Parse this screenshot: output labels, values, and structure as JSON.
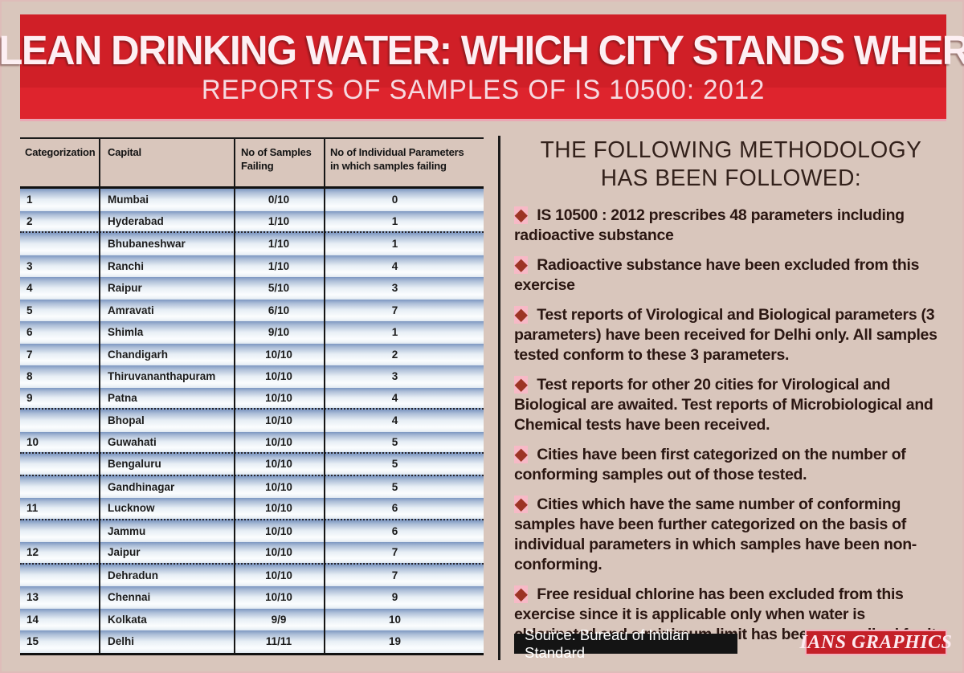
{
  "header": {
    "title": "CLEAN DRINKING WATER: WHICH CITY STANDS WHERE",
    "subtitle": "REPORTS OF SAMPLES OF IS 10500: 2012"
  },
  "table": {
    "col_headers": {
      "categorization": "Categorization",
      "capital": "Capital",
      "samples_line1": "No of Samples",
      "samples_line2": "Failing",
      "params_line1": "No of Individual Parameters",
      "params_line2": "in which samples failing"
    },
    "rows": [
      {
        "cat": "1",
        "capital": "Mumbai",
        "samples": "0/10",
        "params": "0",
        "dotted_below": false
      },
      {
        "cat": "2",
        "capital": "Hyderabad",
        "samples": "1/10",
        "params": "1",
        "dotted_below": true
      },
      {
        "cat": "",
        "capital": "Bhubaneshwar",
        "samples": "1/10",
        "params": "1",
        "dotted_below": false
      },
      {
        "cat": "3",
        "capital": "Ranchi",
        "samples": "1/10",
        "params": "4",
        "dotted_below": false
      },
      {
        "cat": "4",
        "capital": "Raipur",
        "samples": "5/10",
        "params": "3",
        "dotted_below": false
      },
      {
        "cat": "5",
        "capital": "Amravati",
        "samples": "6/10",
        "params": "7",
        "dotted_below": false
      },
      {
        "cat": "6",
        "capital": "Shimla",
        "samples": "9/10",
        "params": "1",
        "dotted_below": false
      },
      {
        "cat": "7",
        "capital": "Chandigarh",
        "samples": "10/10",
        "params": "2",
        "dotted_below": false
      },
      {
        "cat": "8",
        "capital": "Thiruvananthapuram",
        "samples": "10/10",
        "params": "3",
        "dotted_below": false
      },
      {
        "cat": "9",
        "capital": "Patna",
        "samples": "10/10",
        "params": "4",
        "dotted_below": true
      },
      {
        "cat": "",
        "capital": "Bhopal",
        "samples": "10/10",
        "params": "4",
        "dotted_below": false
      },
      {
        "cat": "10",
        "capital": "Guwahati",
        "samples": "10/10",
        "params": "5",
        "dotted_below": true
      },
      {
        "cat": "",
        "capital": "Bengaluru",
        "samples": "10/10",
        "params": "5",
        "dotted_below": true
      },
      {
        "cat": "",
        "capital": "Gandhinagar",
        "samples": "10/10",
        "params": "5",
        "dotted_below": false
      },
      {
        "cat": "11",
        "capital": "Lucknow",
        "samples": "10/10",
        "params": "6",
        "dotted_below": true
      },
      {
        "cat": "",
        "capital": "Jammu",
        "samples": "10/10",
        "params": "6",
        "dotted_below": false
      },
      {
        "cat": "12",
        "capital": "Jaipur",
        "samples": "10/10",
        "params": "7",
        "dotted_below": true
      },
      {
        "cat": "",
        "capital": "Dehradun",
        "samples": "10/10",
        "params": "7",
        "dotted_below": false
      },
      {
        "cat": "13",
        "capital": "Chennai",
        "samples": "10/10",
        "params": "9",
        "dotted_below": false
      },
      {
        "cat": "14",
        "capital": "Kolkata",
        "samples": "9/9",
        "params": "10",
        "dotted_below": false
      },
      {
        "cat": "15",
        "capital": "Delhi",
        "samples": "11/11",
        "params": "19",
        "dotted_below": false
      }
    ]
  },
  "methodology": {
    "heading_line1": "THE FOLLOWING METHODOLOGY",
    "heading_line2": "HAS BEEN FOLLOWED:",
    "bullet_glyph": "◆",
    "bullets": [
      "IS 10500 : 2012 prescribes 48 parameters including radioactive substance",
      "Radioactive substance have been excluded from this exercise",
      "Test reports of Virological and Biological parameters (3 parameters) have been received for Delhi only. All samples tested conform to these 3 parameters.",
      "Test reports for other 20 cities for Virological and Biological are awaited. Test reports of Microbiological and Chemical tests have been received.",
      "Cities have been first categorized on the number of conforming samples out of those tested.",
      "Cities which have the same number of conforming samples have been further categorized on the basis of individual parameters in which samples have been non-conforming.",
      "Free residual chlorine has been excluded from this exercise since it is applicable only when water is chlorinated and a minimum limit has been prescribed for it."
    ]
  },
  "footer": {
    "source": "Source: Bureau of Indian Standard",
    "credit": "IANS GRAPHICS"
  },
  "colors": {
    "background": "#d9c6bc",
    "banner_red": "#d01f27",
    "banner_title": "#fdeff3",
    "banner_subtitle": "#f6d9e0",
    "row_gradient_top": "#7d97c1",
    "row_gradient_bottom": "#ffffff",
    "diamond": "#9c3424",
    "diamond_halo": "#f7b9c6",
    "source_box_bg": "#141414",
    "credit_box_bg": "#c42028",
    "text_dark": "#2b1712"
  },
  "chart_data": {
    "type": "table",
    "title": "CLEAN DRINKING WATER: WHICH CITY STANDS WHERE — REPORTS OF SAMPLES OF IS 10500: 2012",
    "columns": [
      "Categorization",
      "Capital",
      "No of Samples Failing",
      "No of Individual Parameters in which samples failing"
    ],
    "rows": [
      [
        "1",
        "Mumbai",
        "0/10",
        "0"
      ],
      [
        "2",
        "Hyderabad",
        "1/10",
        "1"
      ],
      [
        "",
        "Bhubaneshwar",
        "1/10",
        "1"
      ],
      [
        "3",
        "Ranchi",
        "1/10",
        "4"
      ],
      [
        "4",
        "Raipur",
        "5/10",
        "3"
      ],
      [
        "5",
        "Amravati",
        "6/10",
        "7"
      ],
      [
        "6",
        "Shimla",
        "9/10",
        "1"
      ],
      [
        "7",
        "Chandigarh",
        "10/10",
        "2"
      ],
      [
        "8",
        "Thiruvananthapuram",
        "10/10",
        "3"
      ],
      [
        "9",
        "Patna",
        "10/10",
        "4"
      ],
      [
        "",
        "Bhopal",
        "10/10",
        "4"
      ],
      [
        "10",
        "Guwahati",
        "10/10",
        "5"
      ],
      [
        "",
        "Bengaluru",
        "10/10",
        "5"
      ],
      [
        "",
        "Gandhinagar",
        "10/10",
        "5"
      ],
      [
        "11",
        "Lucknow",
        "10/10",
        "6"
      ],
      [
        "",
        "Jammu",
        "10/10",
        "6"
      ],
      [
        "12",
        "Jaipur",
        "10/10",
        "7"
      ],
      [
        "",
        "Dehradun",
        "10/10",
        "7"
      ],
      [
        "13",
        "Chennai",
        "10/10",
        "9"
      ],
      [
        "14",
        "Kolkata",
        "9/9",
        "10"
      ],
      [
        "15",
        "Delhi",
        "11/11",
        "19"
      ]
    ],
    "source": "Bureau of Indian Standard"
  }
}
